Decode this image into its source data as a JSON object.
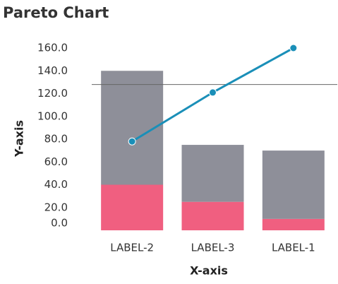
{
  "chart_data": {
    "type": "pareto",
    "title": "Pareto Chart",
    "x_label": "X-axis",
    "y_label": "Y-axis",
    "categories": [
      "LABEL-2",
      "LABEL-3",
      "LABEL-1"
    ],
    "series": [
      {
        "color": "#f05f80",
        "values": [
          40,
          25,
          10
        ]
      },
      {
        "color": "#8e8f99",
        "values": [
          100,
          50,
          60
        ]
      }
    ],
    "line": {
      "color": "#1a8fb8",
      "values": [
        78,
        121,
        160
      ]
    },
    "threshold": 128,
    "threshold_color": "#666666",
    "ylim": [
      0,
      160
    ],
    "yticks": [
      {
        "value": 0,
        "label": "0.0"
      },
      {
        "value": 20,
        "label": "20.0"
      },
      {
        "value": 40,
        "label": "40.0"
      },
      {
        "value": 60,
        "label": "60.0"
      },
      {
        "value": 80,
        "label": "80.0"
      },
      {
        "value": 100,
        "label": "100.0"
      },
      {
        "value": 120,
        "label": "120.0"
      },
      {
        "value": 140,
        "label": "140.0"
      },
      {
        "value": 160,
        "label": "160.0"
      }
    ]
  }
}
